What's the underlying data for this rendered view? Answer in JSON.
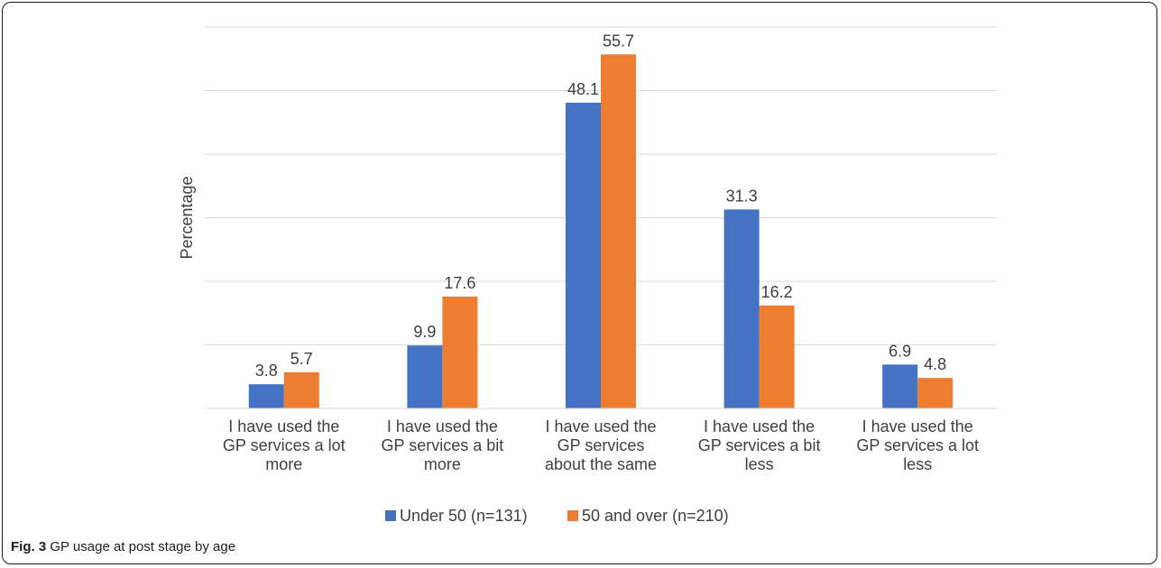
{
  "caption": {
    "fig_label": "Fig. 3",
    "text": "GP usage at post stage by age"
  },
  "chart_data": {
    "type": "bar",
    "title": "",
    "xlabel": "",
    "ylabel": "Percentage",
    "ylim": [
      0,
      60
    ],
    "grid": true,
    "legend_position": "bottom",
    "categories": [
      [
        "I have used the",
        "GP services a lot",
        "more"
      ],
      [
        "I have used the",
        "GP services a bit",
        "more"
      ],
      [
        "I have used the",
        "GP services",
        "about the same"
      ],
      [
        "I have used the",
        "GP services a bit",
        "less"
      ],
      [
        "I have used the",
        "GP services a lot",
        "less"
      ]
    ],
    "series": [
      {
        "name": "Under 50 (n=131)",
        "color": "#4472C4",
        "values": [
          3.8,
          9.9,
          48.1,
          31.3,
          6.9
        ]
      },
      {
        "name": "50 and over (n=210)",
        "color": "#ED7D31",
        "values": [
          5.7,
          17.6,
          55.7,
          16.2,
          4.8
        ]
      }
    ]
  }
}
